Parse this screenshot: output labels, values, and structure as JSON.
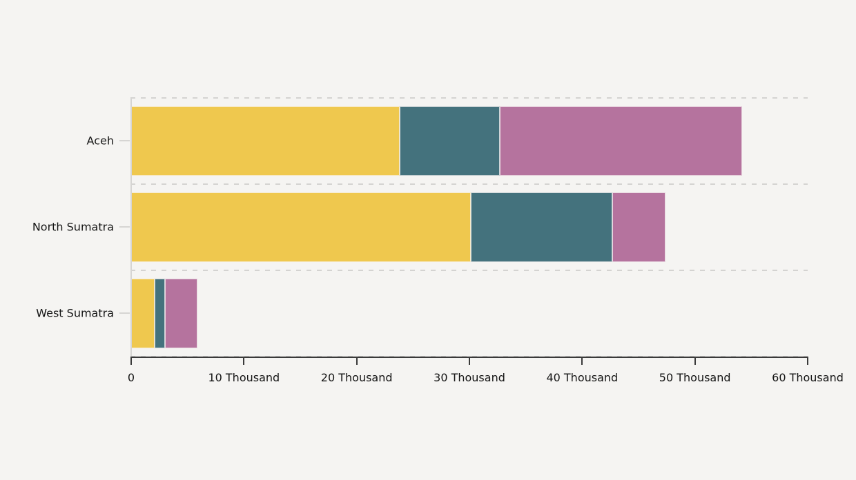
{
  "chart_data": {
    "type": "bar",
    "orientation": "horizontal",
    "stacked": true,
    "title": "",
    "xlabel": "",
    "ylabel": "",
    "legend_position": "none",
    "grid": "dashed horizontal separators between category bands",
    "unit": "Thousand",
    "xlim_thousands": [
      0,
      60
    ],
    "categories": [
      "Aceh",
      "North Sumatra",
      "West Sumatra"
    ],
    "series": [
      {
        "name": "yellow-segment",
        "color": "#EFC84E",
        "values_thousands": [
          23.8,
          30.1,
          2.1
        ]
      },
      {
        "name": "teal-segment",
        "color": "#44727D",
        "values_thousands": [
          8.9,
          12.6,
          0.9
        ]
      },
      {
        "name": "pink-segment",
        "color": "#B5739E",
        "values_thousands": [
          21.5,
          4.7,
          2.9
        ]
      }
    ],
    "totals_thousands": [
      54.2,
      47.4,
      5.9
    ],
    "x_ticks": [
      {
        "value_thousands": 0,
        "label": "0"
      },
      {
        "value_thousands": 10,
        "label": "10 Thousand"
      },
      {
        "value_thousands": 20,
        "label": "20 Thousand"
      },
      {
        "value_thousands": 30,
        "label": "30 Thousand"
      },
      {
        "value_thousands": 40,
        "label": "40 Thousand"
      },
      {
        "value_thousands": 50,
        "label": "50 Thousand"
      },
      {
        "value_thousands": 60,
        "label": "60 Thousand"
      }
    ]
  },
  "colors": {
    "background": "#f5f4f2",
    "gridline": "#d4d3d1",
    "axis_line": "#3a3a3a",
    "category_axis_line": "#d6d5d3",
    "text": "#141414"
  }
}
